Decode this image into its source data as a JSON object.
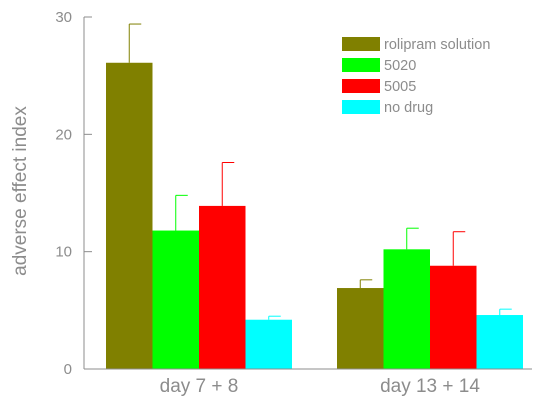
{
  "chart_data": {
    "type": "bar",
    "categories": [
      "day 7 + 8",
      "day 13 + 14"
    ],
    "series": [
      {
        "name": "rolipram solution",
        "color": "#808000",
        "values": [
          26.1,
          6.9
        ],
        "errors": [
          3.3,
          0.7
        ]
      },
      {
        "name": "5020",
        "color": "#00ff00",
        "values": [
          11.8,
          10.2
        ],
        "errors": [
          3.0,
          1.8
        ]
      },
      {
        "name": "5005",
        "color": "#ff0000",
        "values": [
          13.9,
          8.8
        ],
        "errors": [
          3.7,
          2.9
        ]
      },
      {
        "name": "no drug",
        "color": "#00ffff",
        "values": [
          4.2,
          4.6
        ],
        "errors": [
          0.3,
          0.5
        ]
      }
    ],
    "xlabel": "",
    "ylabel": "adverse effect index",
    "ylim": [
      0,
      30
    ],
    "yticks": [
      0,
      10,
      20,
      30
    ],
    "grid": false,
    "legend_position": "top-right",
    "axis_color": "#8c8c8c"
  }
}
